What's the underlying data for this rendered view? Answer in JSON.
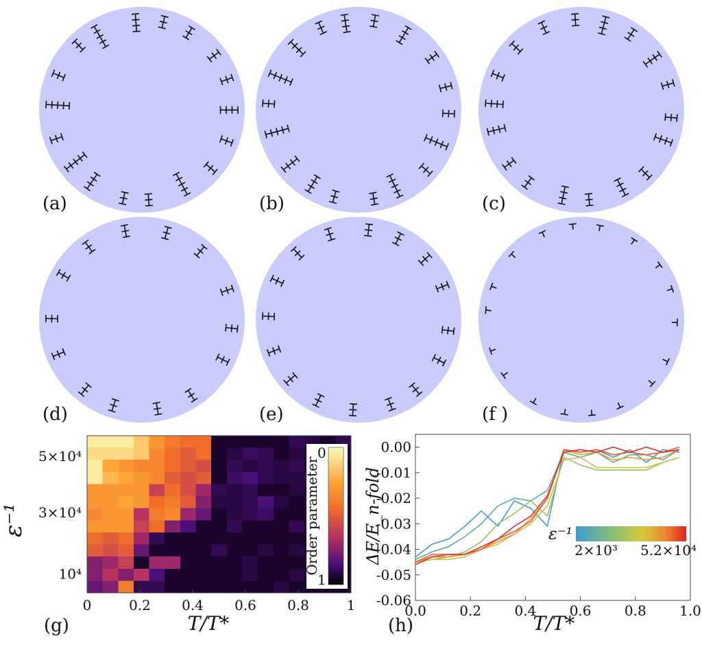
{
  "panels": [
    {
      "label": "(a)"
    },
    {
      "label": "(b)"
    },
    {
      "label": "(c)"
    },
    {
      "label": "(d)"
    },
    {
      "label": "(e)"
    },
    {
      "label": "(f )"
    },
    {
      "label": "(g)"
    },
    {
      "label": "(h)"
    }
  ],
  "colors": {
    "disk": "#c9cbfb",
    "dislocation": "#111111"
  },
  "chart_data": [
    {
      "type": "heatmap",
      "panel": "(g)",
      "title": "",
      "xlabel": "T/T*",
      "ylabel": "ε⁻¹",
      "xlim": [
        0,
        1
      ],
      "x_ticks": [
        "0",
        "0.2",
        "0.4",
        "0.6",
        "0.8",
        "1"
      ],
      "y_ticks": [
        "5×10⁴",
        "3×10⁴",
        "10⁴"
      ],
      "colorbar": {
        "label": "Order parameter",
        "min_label": "0",
        "max_label": "1",
        "min": 0,
        "max": 1
      },
      "rows_top_to_bottom": [
        [
          0.05,
          0.05,
          0.05,
          0.15,
          0.3,
          0.4,
          0.45,
          0.45,
          0.95,
          0.95,
          0.95,
          0.95,
          0.95,
          0.9,
          0.92,
          0.95,
          0.9
        ],
        [
          0.1,
          0.1,
          0.1,
          0.15,
          0.35,
          0.45,
          0.5,
          0.45,
          0.95,
          0.92,
          0.88,
          0.9,
          0.95,
          0.92,
          0.95,
          0.95,
          0.92
        ],
        [
          0.05,
          0.25,
          0.3,
          0.35,
          0.35,
          0.45,
          0.5,
          0.55,
          0.95,
          0.9,
          0.92,
          0.9,
          0.92,
          0.9,
          0.95,
          0.92,
          0.95
        ],
        [
          0.05,
          0.2,
          0.25,
          0.3,
          0.35,
          0.5,
          0.55,
          0.5,
          0.95,
          0.88,
          0.85,
          0.9,
          0.92,
          0.92,
          0.9,
          0.95,
          0.92
        ],
        [
          0.3,
          0.3,
          0.3,
          0.3,
          0.6,
          0.45,
          0.55,
          0.7,
          0.9,
          0.92,
          0.9,
          0.95,
          0.95,
          0.92,
          0.95,
          0.9,
          0.92
        ],
        [
          0.3,
          0.3,
          0.25,
          0.3,
          0.45,
          0.4,
          0.5,
          0.75,
          0.92,
          0.92,
          0.9,
          0.85,
          0.92,
          0.95,
          0.92,
          0.92,
          0.95
        ],
        [
          0.35,
          0.3,
          0.3,
          0.65,
          0.4,
          0.35,
          0.7,
          0.8,
          0.95,
          0.92,
          0.9,
          0.88,
          0.95,
          0.95,
          0.92,
          0.95,
          0.95
        ],
        [
          0.3,
          0.3,
          0.3,
          0.6,
          0.45,
          0.75,
          0.85,
          0.95,
          0.95,
          0.9,
          0.95,
          0.95,
          0.95,
          0.9,
          0.95,
          0.95,
          0.95
        ],
        [
          0.45,
          0.5,
          0.45,
          0.7,
          0.9,
          0.95,
          0.95,
          0.95,
          0.95,
          0.95,
          0.95,
          0.95,
          0.95,
          0.95,
          0.95,
          0.95,
          0.95
        ],
        [
          0.5,
          0.55,
          0.5,
          0.8,
          0.95,
          0.95,
          0.95,
          0.95,
          0.9,
          0.95,
          0.95,
          0.92,
          0.95,
          0.92,
          0.95,
          0.95,
          0.95
        ],
        [
          0.75,
          0.7,
          0.6,
          0.95,
          0.7,
          0.7,
          0.95,
          0.95,
          0.95,
          0.95,
          0.92,
          0.95,
          0.95,
          0.95,
          0.95,
          0.95,
          0.95
        ],
        [
          0.75,
          0.65,
          0.75,
          0.65,
          0.85,
          0.95,
          0.95,
          0.95,
          0.95,
          0.95,
          0.92,
          0.95,
          0.95,
          0.92,
          0.95,
          0.95,
          0.95
        ],
        [
          0.8,
          0.75,
          0.4,
          0.9,
          0.9,
          0.95,
          0.95,
          0.95,
          0.95,
          0.95,
          0.95,
          0.95,
          0.92,
          0.95,
          0.95,
          0.95,
          0.95
        ]
      ]
    },
    {
      "type": "line",
      "panel": "(h)",
      "title": "",
      "xlabel": "T/T*",
      "ylabel": "ΔE/E_n-fold",
      "xlim": [
        0,
        1.0
      ],
      "ylim": [
        -0.06,
        0.005
      ],
      "x_ticks": [
        "0.0",
        "0.2",
        "0.4",
        "0.6",
        "0.8",
        "1.0"
      ],
      "y_ticks": [
        "0.00",
        "-0.01",
        "-0.02",
        "-0.03",
        "-0.04",
        "-0.05",
        "-0.06"
      ],
      "colorbar": {
        "label": "ε⁻¹",
        "min_label": "2×10³",
        "max_label": "5.2×10⁴"
      },
      "x": [
        0,
        0.06,
        0.12,
        0.18,
        0.24,
        0.3,
        0.36,
        0.42,
        0.48,
        0.54,
        0.6,
        0.66,
        0.72,
        0.78,
        0.84,
        0.9,
        0.96
      ],
      "series": [
        {
          "name": "2×10³",
          "color": "#3a9ed0",
          "values": [
            -0.043,
            -0.038,
            -0.036,
            -0.031,
            -0.025,
            -0.031,
            -0.021,
            -0.024,
            -0.031,
            -0.001,
            -0.002,
            -0.001,
            -0.004,
            -0.001,
            -0.006,
            -0.001,
            -0.002
          ]
        },
        {
          "name": "5×10³",
          "color": "#5aaea0",
          "values": [
            -0.044,
            -0.041,
            -0.039,
            -0.035,
            -0.03,
            -0.023,
            -0.02,
            -0.021,
            -0.017,
            -0.002,
            -0.004,
            -0.002,
            -0.006,
            -0.003,
            -0.003,
            -0.005,
            -0.001
          ]
        },
        {
          "name": "1×10⁴",
          "color": "#9cc060",
          "values": [
            -0.045,
            -0.044,
            -0.043,
            -0.041,
            -0.037,
            -0.03,
            -0.026,
            -0.021,
            -0.027,
            -0.004,
            -0.007,
            -0.009,
            -0.009,
            -0.009,
            -0.009,
            -0.006,
            -0.004
          ]
        },
        {
          "name": "2×10⁴",
          "color": "#d2c03c",
          "values": [
            -0.045,
            -0.044,
            -0.044,
            -0.043,
            -0.04,
            -0.038,
            -0.034,
            -0.03,
            -0.023,
            -0.005,
            -0.004,
            -0.008,
            -0.008,
            -0.008,
            -0.008,
            -0.006,
            -0.004
          ]
        },
        {
          "name": "3×10⁴",
          "color": "#e89a34",
          "values": [
            -0.045,
            -0.043,
            -0.043,
            -0.042,
            -0.04,
            -0.037,
            -0.034,
            -0.028,
            -0.02,
            -0.001,
            -0.003,
            -0.002,
            -0.005,
            -0.004,
            -0.005,
            -0.004,
            -0.001
          ]
        },
        {
          "name": "4×10⁴",
          "color": "#e85a2c",
          "values": [
            -0.045,
            -0.042,
            -0.042,
            -0.042,
            -0.04,
            -0.036,
            -0.033,
            -0.029,
            -0.02,
            -0.001,
            -0.002,
            -0.001,
            -0.003,
            -0.002,
            -0.003,
            -0.002,
            0.0
          ]
        },
        {
          "name": "5.2×10⁴",
          "color": "#e02a2a",
          "values": [
            -0.046,
            -0.043,
            -0.042,
            -0.042,
            -0.039,
            -0.036,
            -0.031,
            -0.027,
            -0.019,
            -0.002,
            -0.001,
            -0.002,
            0.0,
            -0.002,
            0.0,
            -0.002,
            -0.001
          ]
        }
      ]
    }
  ]
}
